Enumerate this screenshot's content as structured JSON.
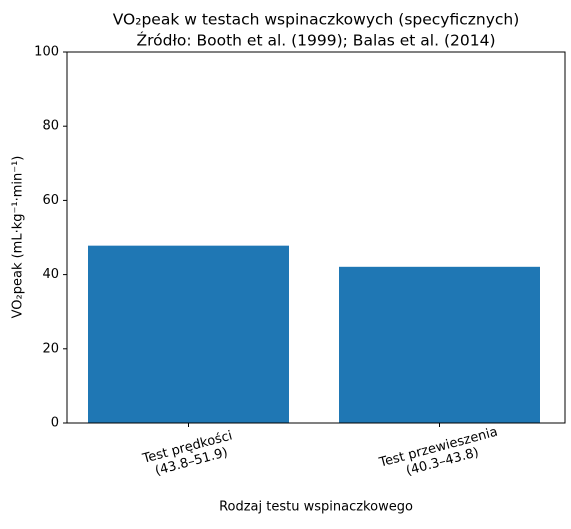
{
  "chart_data": {
    "type": "bar",
    "title": "VO₂peak w testach wspinaczkowych (specyficznych)",
    "subtitle": "Źródło: Booth et al. (1999); Balas et al. (2014)",
    "x_label": "Rodzaj testu wspinaczkowego",
    "y_label": "VO₂peak (mL·kg⁻¹·min⁻¹)",
    "categories": [
      "Test prędkości\n(43.8–51.9)",
      "Test przewieszenia\n(40.3–43.8)"
    ],
    "values": [
      47.8,
      42.1
    ],
    "color": "#1f77b4",
    "ylim": [
      0,
      100
    ],
    "yticks": [
      0,
      20,
      40,
      60,
      80,
      100
    ],
    "grid": false
  }
}
